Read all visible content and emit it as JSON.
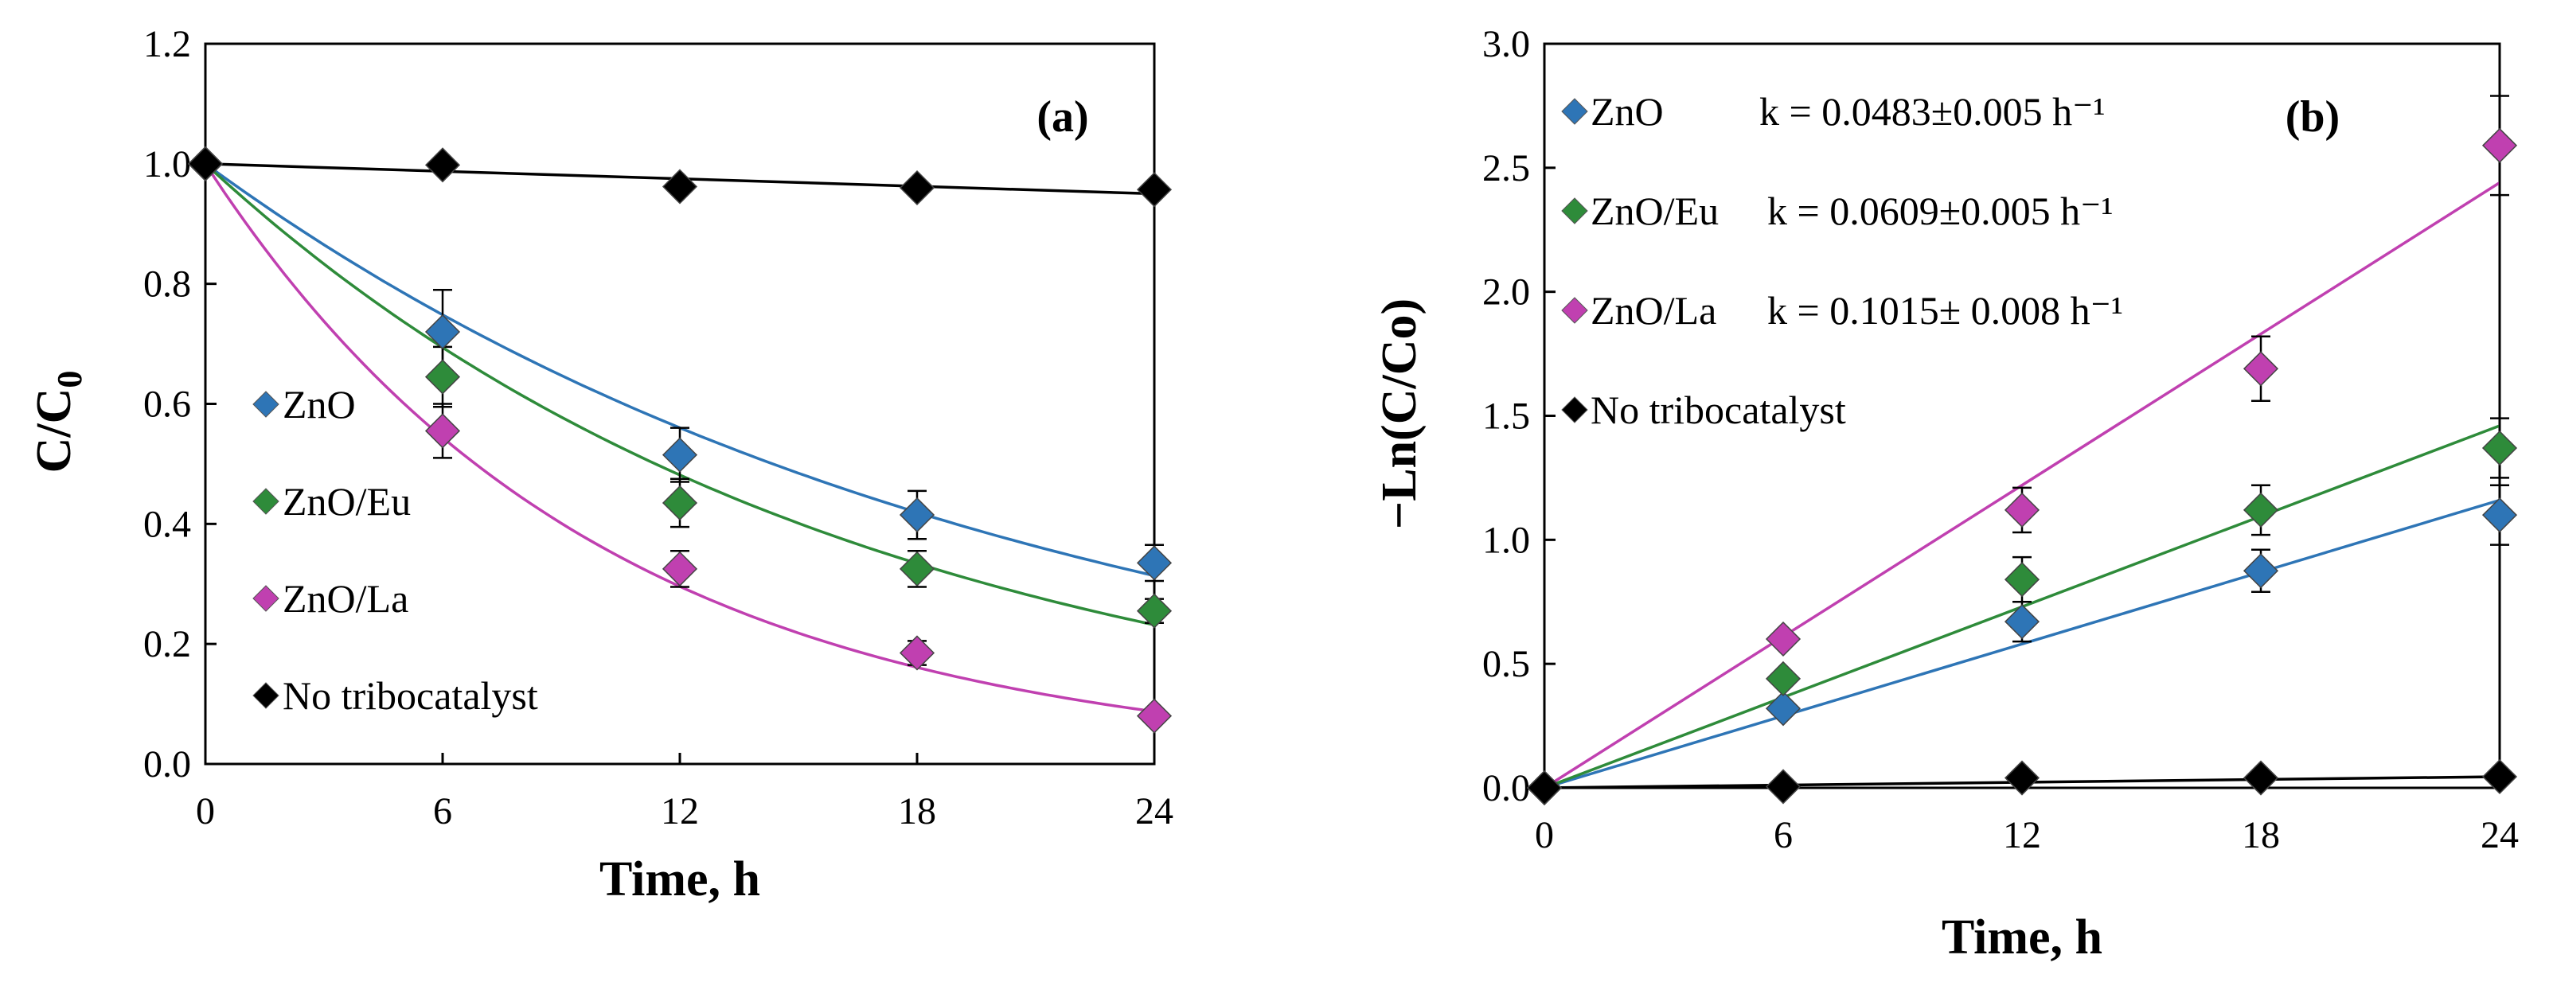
{
  "chart_data": [
    {
      "type": "scatter",
      "panel_label": "(a)",
      "xlabel": "Time, h",
      "ylabel": "C/C",
      "ylabel_subscript": "0",
      "xlim": [
        0,
        24
      ],
      "ylim": [
        0,
        1.2
      ],
      "xticks": [
        "0",
        "6",
        "12",
        "18",
        "24"
      ],
      "yticks": [
        "0.0",
        "0.2",
        "0.4",
        "0.6",
        "0.8",
        "1.0",
        "1.2"
      ],
      "x": [
        0,
        6,
        12,
        18,
        24
      ],
      "legend_position": "left",
      "series": [
        {
          "name": "ZnO",
          "color": "#2e75b6",
          "values": [
            1.0,
            0.72,
            0.515,
            0.415,
            0.335
          ],
          "errors": [
            0,
            0.07,
            0.045,
            0.04,
            0.03
          ],
          "fit": {
            "kind": "exp",
            "k": 0.0483
          }
        },
        {
          "name": "ZnO/Eu",
          "color": "#2e8b3a",
          "values": [
            1.0,
            0.645,
            0.435,
            0.325,
            0.255
          ],
          "errors": [
            0,
            0.05,
            0.04,
            0.03,
            0.02
          ],
          "fit": {
            "kind": "exp",
            "k": 0.0609
          }
        },
        {
          "name": "ZnO/La",
          "color": "#c040b0",
          "values": [
            1.0,
            0.555,
            0.325,
            0.185,
            0.08
          ],
          "errors": [
            0,
            0.045,
            0.03,
            0.02,
            0.01
          ],
          "fit": {
            "kind": "exp",
            "k": 0.1015
          }
        },
        {
          "name": "No tribocatalyst",
          "color": "#000000",
          "values": [
            1.0,
            0.998,
            0.962,
            0.96,
            0.957
          ],
          "errors": [
            0,
            0,
            0,
            0,
            0
          ],
          "fit": {
            "kind": "linear",
            "start": 1.0,
            "end": 0.95
          }
        }
      ]
    },
    {
      "type": "scatter",
      "panel_label": "(b)",
      "xlabel": "Time, h",
      "ylabel": "−Ln(C/Co)",
      "xlim": [
        0,
        24
      ],
      "ylim": [
        0,
        3.0
      ],
      "xticks": [
        "0",
        "6",
        "12",
        "18",
        "24"
      ],
      "yticks": [
        "0.0",
        "0.5",
        "1.0",
        "1.5",
        "2.0",
        "2.5",
        "3.0"
      ],
      "x": [
        0,
        6,
        12,
        18,
        24
      ],
      "legend_position": "top-left",
      "series": [
        {
          "name": "ZnO",
          "rate": "k = 0.0483±0.005   h⁻¹",
          "color": "#2e75b6",
          "values": [
            0,
            0.32,
            0.67,
            0.875,
            1.1
          ],
          "errors": [
            0,
            0,
            0.08,
            0.085,
            0.12
          ],
          "fit": {
            "kind": "linear",
            "start": 0,
            "end": 1.16
          }
        },
        {
          "name": "ZnO/Eu",
          "rate": "k = 0.0609±0.005  h⁻¹",
          "color": "#2e8b3a",
          "values": [
            0,
            0.44,
            0.84,
            1.12,
            1.37
          ],
          "errors": [
            0,
            0,
            0.09,
            0.1,
            0.12
          ],
          "fit": {
            "kind": "linear",
            "start": 0,
            "end": 1.46
          }
        },
        {
          "name": "ZnO/La",
          "rate": "k = 0.1015± 0.008  h⁻¹",
          "color": "#c040b0",
          "values": [
            0,
            0.6,
            1.12,
            1.69,
            2.59
          ],
          "errors": [
            0,
            0,
            0.09,
            0.13,
            0.2
          ],
          "fit": {
            "kind": "linear",
            "start": 0,
            "end": 2.44
          }
        },
        {
          "name": "No tribocatalyst",
          "rate": "",
          "color": "#000000",
          "values": [
            0,
            0.005,
            0.04,
            0.04,
            0.045
          ],
          "errors": [
            0,
            0,
            0,
            0,
            0
          ],
          "fit": {
            "kind": "linear",
            "start": 0,
            "end": 0.045
          }
        }
      ]
    }
  ]
}
